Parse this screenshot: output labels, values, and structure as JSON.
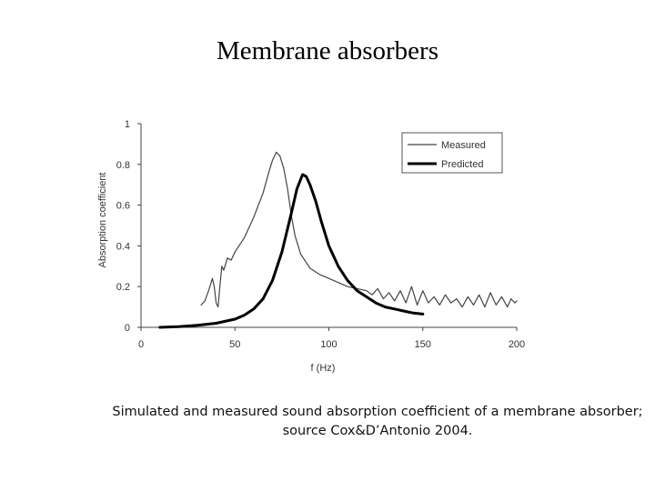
{
  "slide": {
    "title": "Membrane absorbers",
    "caption_line1": "Simulated and measured sound absorption coefficient of a membrane absorber;",
    "caption_line2": "source Cox&D’Antonio 2004."
  },
  "chart_data": {
    "type": "line",
    "xlabel": "f (Hz)",
    "ylabel": "Absorption coefficient",
    "xlim": [
      0,
      200
    ],
    "ylim": [
      0,
      1
    ],
    "xticks": [
      "0",
      "50",
      "100",
      "150",
      "200"
    ],
    "yticks": [
      "0",
      "0.2",
      "0.4",
      "0.6",
      "0.8",
      "1"
    ],
    "legend_position": "top-right",
    "grid": false,
    "series": [
      {
        "name": "Measured",
        "color": "#444444",
        "style": "thin",
        "x": [
          32,
          34,
          36,
          38,
          39,
          40,
          41,
          42,
          43,
          44,
          46,
          48,
          50,
          55,
          60,
          65,
          68,
          70,
          72,
          74,
          76,
          78,
          80,
          82,
          85,
          90,
          95,
          100,
          105,
          110,
          115,
          120,
          123,
          126,
          129,
          132,
          135,
          138,
          141,
          144,
          147,
          150,
          153,
          156,
          159,
          162,
          165,
          168,
          171,
          174,
          177,
          180,
          183,
          186,
          189,
          192,
          195,
          197,
          199,
          200
        ],
        "y": [
          0.11,
          0.13,
          0.18,
          0.24,
          0.2,
          0.12,
          0.1,
          0.2,
          0.3,
          0.28,
          0.34,
          0.33,
          0.37,
          0.44,
          0.54,
          0.66,
          0.76,
          0.82,
          0.86,
          0.84,
          0.78,
          0.68,
          0.55,
          0.45,
          0.36,
          0.29,
          0.26,
          0.24,
          0.22,
          0.2,
          0.19,
          0.18,
          0.16,
          0.19,
          0.14,
          0.17,
          0.13,
          0.18,
          0.12,
          0.2,
          0.11,
          0.18,
          0.12,
          0.15,
          0.11,
          0.16,
          0.12,
          0.14,
          0.1,
          0.15,
          0.11,
          0.16,
          0.1,
          0.17,
          0.11,
          0.15,
          0.1,
          0.14,
          0.12,
          0.13
        ]
      },
      {
        "name": "Predicted",
        "color": "#000000",
        "style": "thick",
        "x": [
          10,
          20,
          30,
          40,
          50,
          55,
          60,
          65,
          70,
          75,
          80,
          83,
          86,
          88,
          90,
          93,
          96,
          100,
          105,
          110,
          115,
          120,
          125,
          130,
          135,
          140,
          145,
          150
        ],
        "y": [
          0.0,
          0.003,
          0.01,
          0.02,
          0.04,
          0.06,
          0.09,
          0.14,
          0.23,
          0.37,
          0.56,
          0.68,
          0.75,
          0.74,
          0.7,
          0.62,
          0.52,
          0.4,
          0.3,
          0.23,
          0.18,
          0.15,
          0.12,
          0.1,
          0.09,
          0.08,
          0.07,
          0.065
        ]
      }
    ]
  }
}
